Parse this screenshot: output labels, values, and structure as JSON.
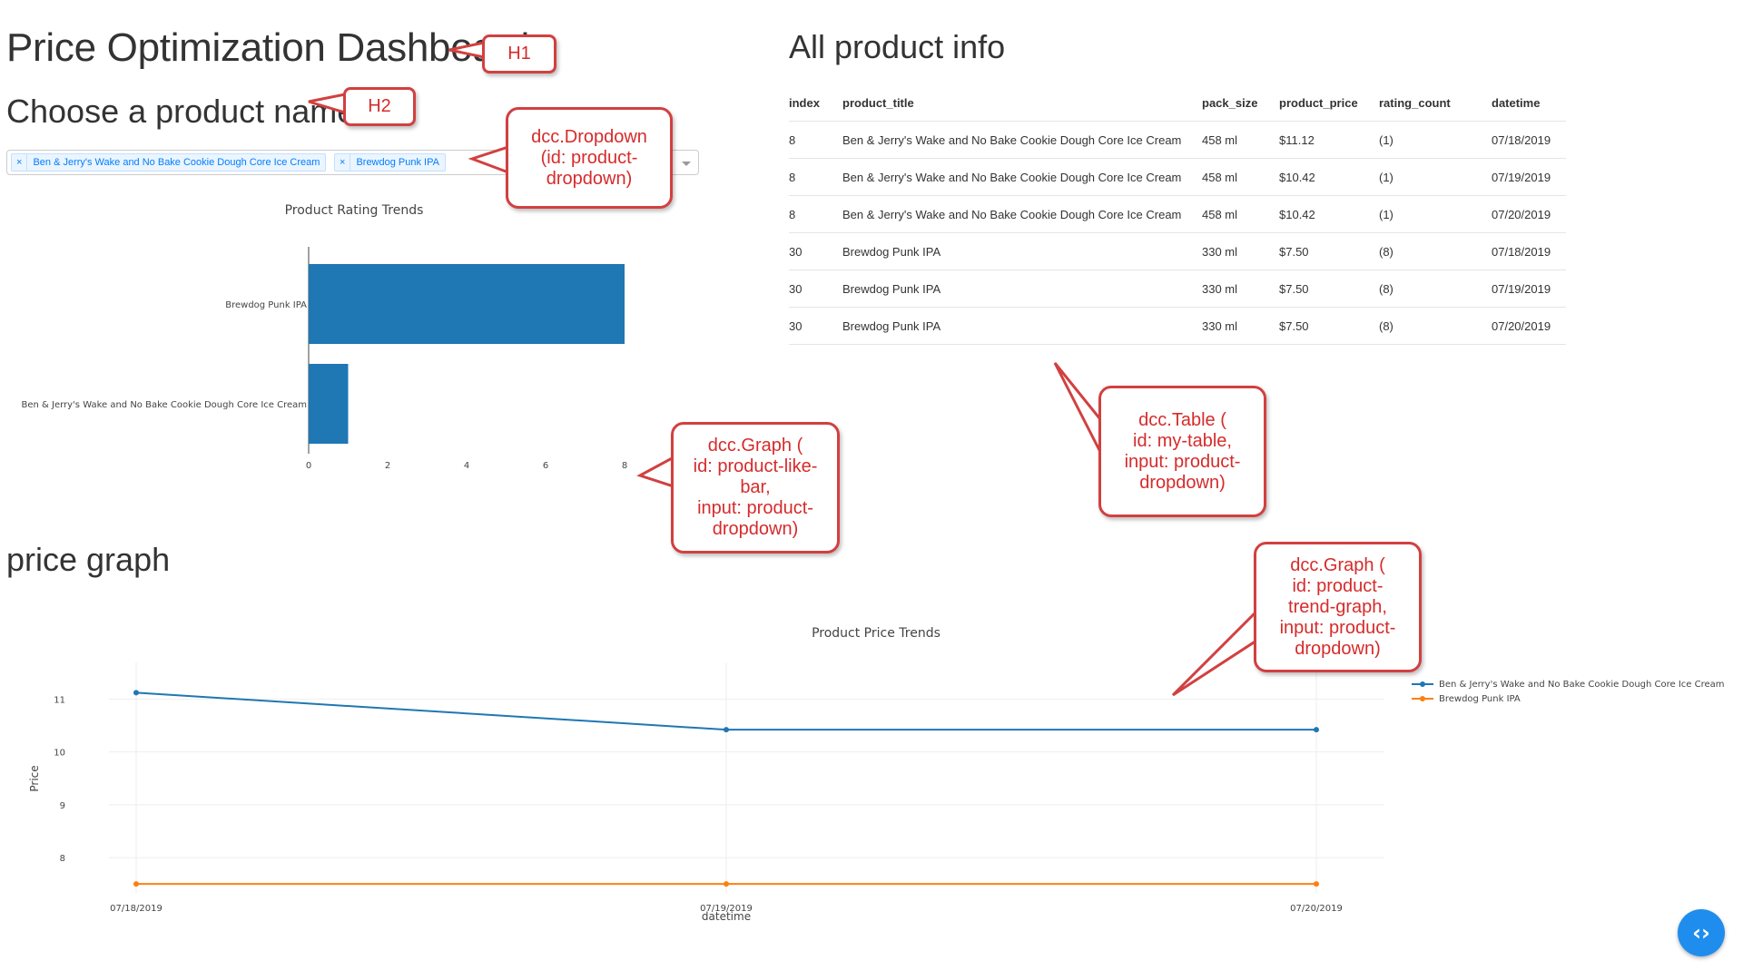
{
  "header": {
    "title": "Price Optimization Dashboard",
    "subtitle": "Choose a product name"
  },
  "dropdown": {
    "selected": [
      "Ben & Jerry's Wake and No Bake Cookie Dough Core Ice Cream",
      "Brewdog Punk IPA"
    ],
    "remove_glyph": "×",
    "clear_glyph": "×"
  },
  "table": {
    "title": "All product info",
    "columns": [
      "index",
      "product_title",
      "pack_size",
      "product_price",
      "rating_count",
      "datetime"
    ],
    "rows": [
      [
        "8",
        "Ben & Jerry's Wake and No Bake Cookie Dough Core Ice Cream",
        "458 ml",
        "$11.12",
        "(1)",
        "07/18/2019"
      ],
      [
        "8",
        "Ben & Jerry's Wake and No Bake Cookie Dough Core Ice Cream",
        "458 ml",
        "$10.42",
        "(1)",
        "07/19/2019"
      ],
      [
        "8",
        "Ben & Jerry's Wake and No Bake Cookie Dough Core Ice Cream",
        "458 ml",
        "$10.42",
        "(1)",
        "07/20/2019"
      ],
      [
        "30",
        "Brewdog Punk IPA",
        "330 ml",
        "$7.50",
        "(8)",
        "07/18/2019"
      ],
      [
        "30",
        "Brewdog Punk IPA",
        "330 ml",
        "$7.50",
        "(8)",
        "07/19/2019"
      ],
      [
        "30",
        "Brewdog Punk IPA",
        "330 ml",
        "$7.50",
        "(8)",
        "07/20/2019"
      ]
    ]
  },
  "price_section": {
    "title": "price graph"
  },
  "callouts": {
    "h1": "H1",
    "h2": "H2",
    "dropdown": [
      "dcc.Dropdown",
      "(id: product-",
      "dropdown)"
    ],
    "bar_graph": [
      "dcc.Graph (",
      "id: product-like-",
      "bar,",
      "input: product-",
      "dropdown)"
    ],
    "table": [
      "dcc.Table (",
      "id: my-table,",
      "input: product-",
      "dropdown)"
    ],
    "line_graph": [
      "dcc.Graph (",
      "id: product-",
      "trend-graph,",
      "input: product-",
      "dropdown)"
    ]
  },
  "icons": {
    "dev_tools": "code-brackets-icon"
  },
  "colors": {
    "series1": "#1f77b4",
    "series2": "#ff7f0e",
    "callout": "#d62b2b",
    "dev_button": "#1f8ded"
  },
  "chart_data": [
    {
      "type": "bar",
      "orientation": "horizontal",
      "title": "Product Rating Trends",
      "categories": [
        "Ben & Jerry's Wake and No Bake Cookie Dough Core Ice Cream",
        "Brewdog Punk IPA"
      ],
      "values": [
        1,
        8
      ],
      "xlim": [
        0,
        8
      ],
      "xticks": [
        0,
        2,
        4,
        6,
        8
      ]
    },
    {
      "type": "line",
      "title": "Product Price Trends",
      "xlabel": "datetime",
      "ylabel": "Price",
      "x": [
        "07/18/2019",
        "07/19/2019",
        "07/20/2019"
      ],
      "series": [
        {
          "name": "Ben & Jerry's Wake and No Bake Cookie Dough Core Ice Cream",
          "values": [
            11.12,
            10.42,
            10.42
          ]
        },
        {
          "name": "Brewdog Punk IPA",
          "values": [
            7.5,
            7.5,
            7.5
          ]
        }
      ],
      "ylim": [
        7.4,
        11.35
      ],
      "yticks": [
        8,
        9,
        10,
        11
      ],
      "legend": "right",
      "grid": true
    }
  ]
}
